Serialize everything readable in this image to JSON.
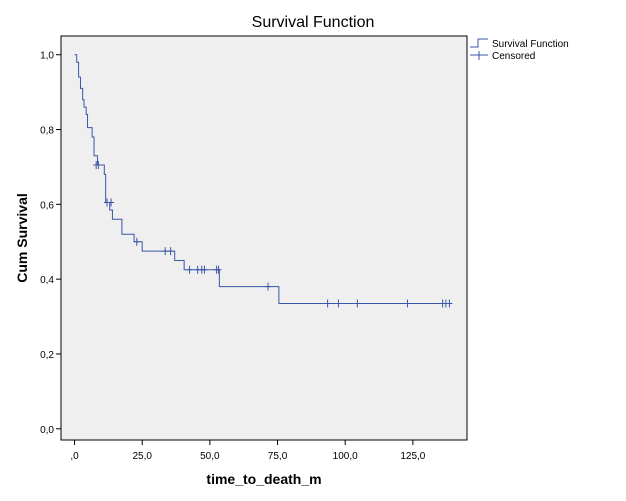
{
  "chart_data": {
    "type": "line",
    "title": "Survival Function",
    "xlabel": "time_to_death_m",
    "ylabel": "Cum Survival",
    "xlim": [
      -5,
      145
    ],
    "ylim": [
      -0.03,
      1.05
    ],
    "x_ticks": [
      0,
      25,
      50,
      75,
      100,
      125
    ],
    "x_tick_labels": [
      ",0",
      "25,0",
      "50,0",
      "75,0",
      "100,0",
      "125,0"
    ],
    "y_ticks": [
      0,
      0.2,
      0.4,
      0.6,
      0.8,
      1.0
    ],
    "y_tick_labels": [
      "0,0",
      "0,2",
      "0,4",
      "0,6",
      "0,8",
      "1,0"
    ],
    "grid": false,
    "legend_position": "top-right-outside",
    "line_color": "#3b56a8",
    "plot_background": "#efefef",
    "series": [
      {
        "name": "Survival Function",
        "kind": "step",
        "points": [
          [
            0,
            1.0
          ],
          [
            0.8,
            0.98
          ],
          [
            1.5,
            0.94
          ],
          [
            2.2,
            0.91
          ],
          [
            3.0,
            0.88
          ],
          [
            3.5,
            0.86
          ],
          [
            4.3,
            0.84
          ],
          [
            4.8,
            0.805
          ],
          [
            6.5,
            0.78
          ],
          [
            7.2,
            0.73
          ],
          [
            8.5,
            0.705
          ],
          [
            11.0,
            0.68
          ],
          [
            11.5,
            0.605
          ],
          [
            13.0,
            0.585
          ],
          [
            14.0,
            0.56
          ],
          [
            17.5,
            0.52
          ],
          [
            22.0,
            0.5
          ],
          [
            25.0,
            0.475
          ],
          [
            37.0,
            0.45
          ],
          [
            40.5,
            0.425
          ],
          [
            53.5,
            0.38
          ],
          [
            75.5,
            0.335
          ],
          [
            139,
            0.335
          ]
        ]
      },
      {
        "name": "Censored",
        "kind": "markers",
        "points": [
          [
            8.0,
            0.705
          ],
          [
            8.8,
            0.705
          ],
          [
            12.0,
            0.605
          ],
          [
            13.5,
            0.605
          ],
          [
            23.0,
            0.5
          ],
          [
            33.5,
            0.475
          ],
          [
            35.5,
            0.475
          ],
          [
            42.5,
            0.425
          ],
          [
            45.5,
            0.425
          ],
          [
            47.0,
            0.425
          ],
          [
            48.0,
            0.425
          ],
          [
            52.5,
            0.425
          ],
          [
            53.2,
            0.425
          ],
          [
            71.5,
            0.38
          ],
          [
            93.5,
            0.335
          ],
          [
            97.5,
            0.335
          ],
          [
            104.5,
            0.335
          ],
          [
            123.0,
            0.335
          ],
          [
            136.0,
            0.335
          ],
          [
            137.2,
            0.335
          ],
          [
            138.5,
            0.335
          ]
        ]
      }
    ]
  }
}
